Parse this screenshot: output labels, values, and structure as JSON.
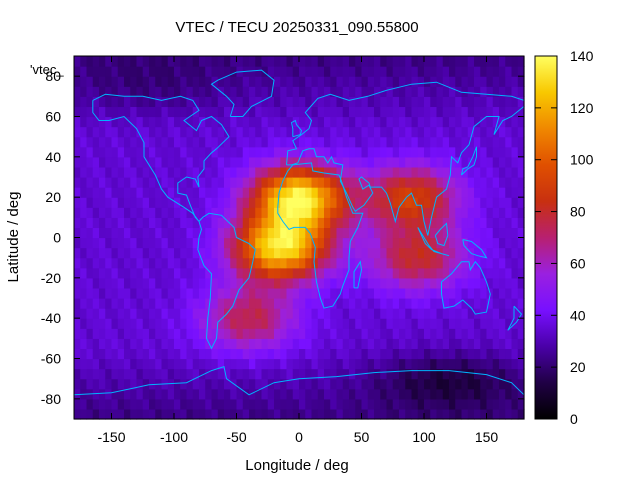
{
  "chart_data": {
    "type": "heatmap",
    "title": "VTEC / TECU 20250331_090.55800",
    "xlabel": "Longitude / deg",
    "ylabel": "Latitude / deg",
    "series_key": "'vtec_",
    "xlim": [
      -180,
      180
    ],
    "ylim": [
      -90,
      90
    ],
    "x_ticks": [
      -150,
      -100,
      -50,
      0,
      50,
      100,
      150
    ],
    "y_ticks": [
      -80,
      -60,
      -40,
      -20,
      0,
      20,
      40,
      60,
      80
    ],
    "colorbar": {
      "min": 0,
      "max": 140,
      "ticks": [
        0,
        20,
        40,
        60,
        80,
        100,
        120,
        140
      ],
      "palette": [
        "#000000",
        "#200045",
        "#4a00a8",
        "#7810ff",
        "#9a20e0",
        "#b82070",
        "#c83010",
        "#e05000",
        "#f08800",
        "#f8c800",
        "#ffff60"
      ]
    },
    "grid": false,
    "background_vtec": 35,
    "vtec_features": [
      {
        "name": "Equatorial anomaly north crest (Africa)",
        "lon": 0,
        "lat": 20,
        "peak_vtec": 135
      },
      {
        "name": "Equatorial anomaly south crest (Atlantic)",
        "lon": -15,
        "lat": -5,
        "peak_vtec": 130
      },
      {
        "name": "Indian Ocean northern band",
        "lon": 90,
        "lat": 20,
        "peak_vtec": 90
      },
      {
        "name": "Indian Ocean southern band",
        "lon": 95,
        "lat": -10,
        "peak_vtec": 80
      },
      {
        "name": "Southern Atlantic extension",
        "lon": -40,
        "lat": -40,
        "peak_vtec": 75
      },
      {
        "name": "Polar minimum north",
        "lon": -120,
        "lat": 75,
        "peak_vtec": 25
      },
      {
        "name": "Southern ocean minimum",
        "lon": 120,
        "lat": -70,
        "peak_vtec": 10
      }
    ],
    "coastlines": "world continental outlines overlaid in cyan"
  },
  "colors": {
    "coastline": "#00b4ff",
    "axis": "#000000"
  }
}
